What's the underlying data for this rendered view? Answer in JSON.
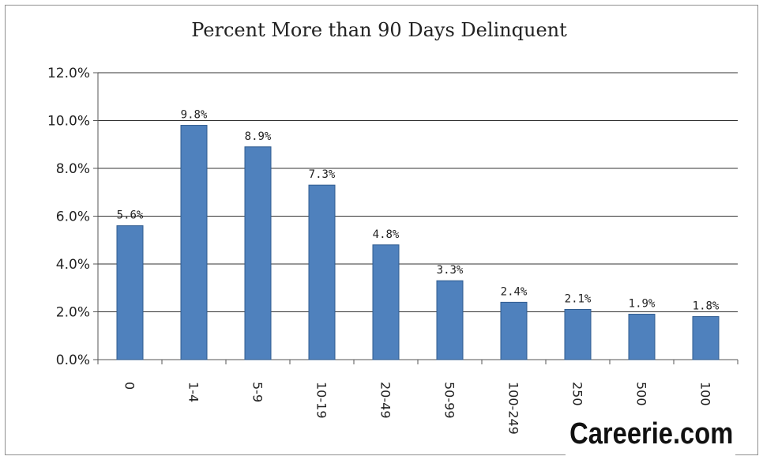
{
  "chart_data": {
    "type": "bar",
    "title": "Percent More than 90 Days Delinquent",
    "categories": [
      "0",
      "1-4",
      "5-9",
      "10-19",
      "20-49",
      "50-99",
      "100-249",
      "250",
      "500",
      "100"
    ],
    "values": [
      5.6,
      9.8,
      8.9,
      7.3,
      4.8,
      3.3,
      2.4,
      2.1,
      1.9,
      1.8
    ],
    "data_labels": [
      "5.6%",
      "9.8%",
      "8.9%",
      "7.3%",
      "4.8%",
      "3.3%",
      "2.4%",
      "2.1%",
      "1.9%",
      "1.8%"
    ],
    "y_ticks": [
      "0.0%",
      "2.0%",
      "4.0%",
      "6.0%",
      "8.0%",
      "10.0%",
      "12.0%"
    ],
    "ylim": [
      0,
      12
    ],
    "xlabel": "",
    "ylabel": "",
    "grid": true,
    "bar_color": "#4f81bd",
    "bar_edge_color": "#2f5b8f"
  },
  "watermark": "Careerie.com"
}
